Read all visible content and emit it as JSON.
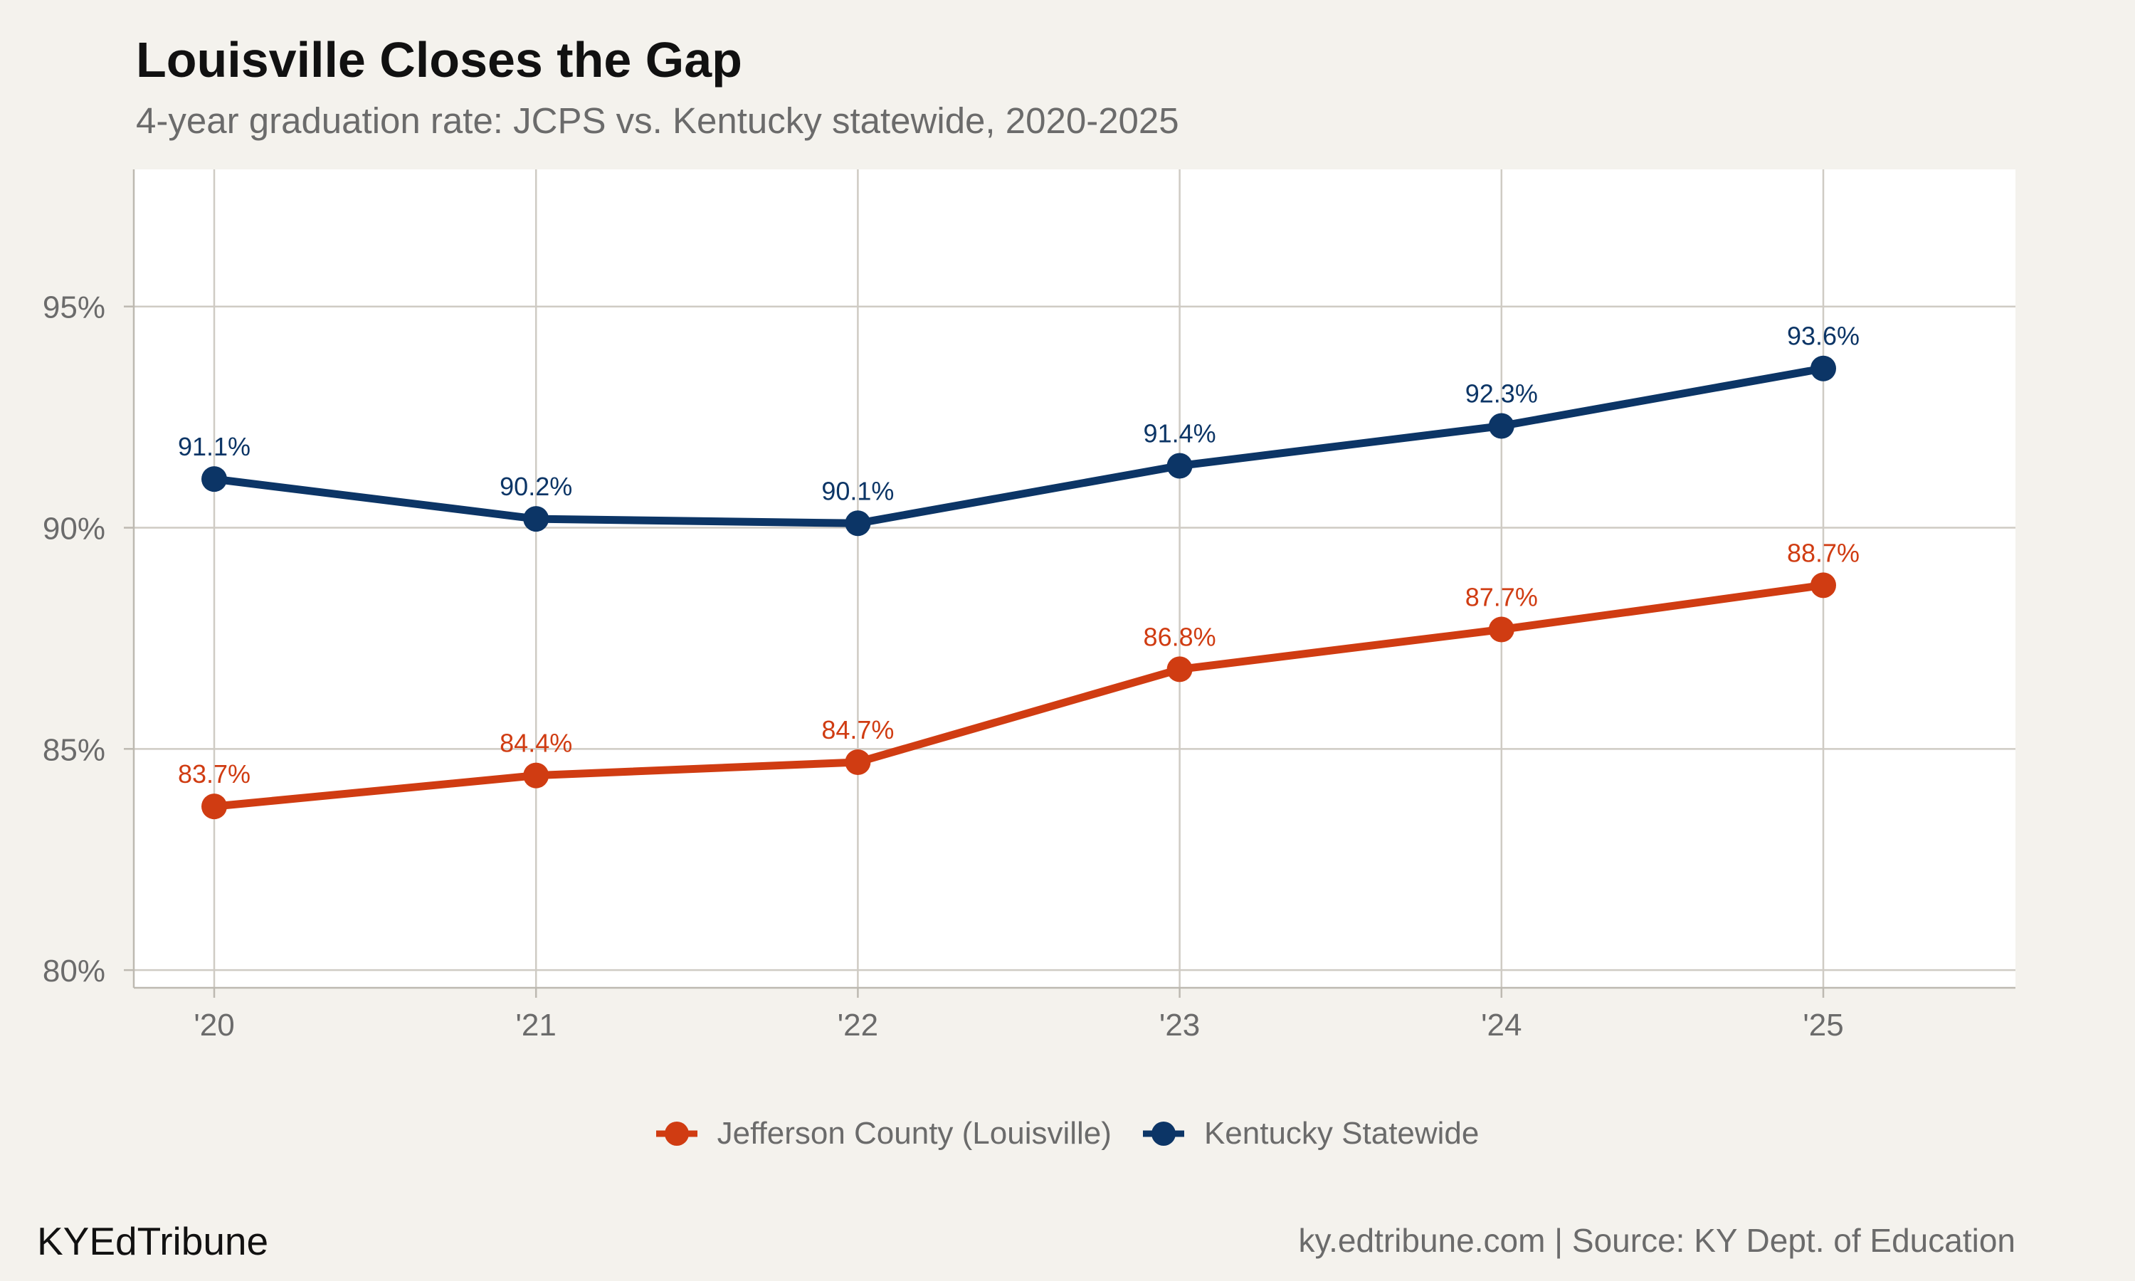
{
  "header": {
    "title": "Louisville Closes the Gap",
    "subtitle": "4-year graduation rate: JCPS vs. Kentucky statewide, 2020-2025"
  },
  "footer": {
    "brand": "KYEdTribune",
    "source": "ky.edtribune.com | Source: KY Dept. of Education"
  },
  "chart_data": {
    "type": "line",
    "title": "Louisville Closes the Gap",
    "subtitle": "4-year graduation rate: JCPS vs. Kentucky statewide, 2020-2025",
    "xlabel": "",
    "ylabel": "",
    "categories": [
      "'20",
      "'21",
      "'22",
      "'23",
      "'24",
      "'25"
    ],
    "yticks": [
      "80%",
      "85%",
      "90%",
      "95%"
    ],
    "ytick_values": [
      80,
      85,
      90,
      95
    ],
    "ylim": [
      79.6,
      98.1
    ],
    "grid": true,
    "legend_position": "bottom",
    "series": [
      {
        "name": "Jefferson County (Louisville)",
        "color": "#d03c12",
        "values": [
          83.7,
          84.4,
          84.7,
          86.8,
          87.7,
          88.7
        ],
        "labels": [
          "83.7%",
          "84.4%",
          "84.7%",
          "86.8%",
          "87.7%",
          "88.7%"
        ]
      },
      {
        "name": "Kentucky Statewide",
        "color": "#0c3566",
        "values": [
          91.1,
          90.2,
          90.1,
          91.4,
          92.3,
          93.6
        ],
        "labels": [
          "91.1%",
          "90.2%",
          "90.1%",
          "91.4%",
          "92.3%",
          "93.6%"
        ]
      }
    ]
  }
}
